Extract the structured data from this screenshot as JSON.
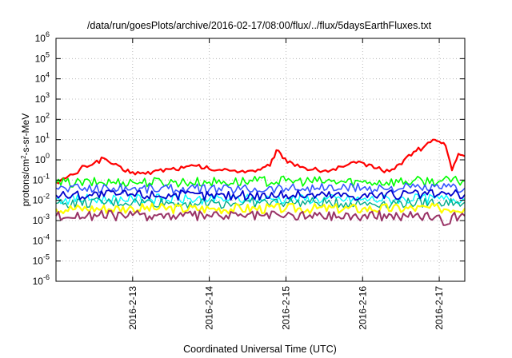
{
  "chart_data": {
    "type": "line",
    "title": "/data/run/goesPlots/archive/2016-02-17/08:00/flux/../flux/5daysEarthFluxes.txt",
    "xlabel": "Coordinated Universal Time (UTC)",
    "ylabel_parts": {
      "pre": "protons/cm",
      "sup": "2",
      "post": "-s-sr-MeV"
    },
    "x_range": [
      "2016-02-12 00:00",
      "2016-02-17 08:00"
    ],
    "x_ticks": [
      "2016-2-13",
      "2016-2-14",
      "2016-2-15",
      "2016-2-16",
      "2016-2-17"
    ],
    "y_scale": "log",
    "y_range": [
      1e-06,
      1000000.0
    ],
    "y_ticks": [
      {
        "base": "10",
        "exp": "-6"
      },
      {
        "base": "10",
        "exp": "-5"
      },
      {
        "base": "10",
        "exp": "-4"
      },
      {
        "base": "10",
        "exp": "-3"
      },
      {
        "base": "10",
        "exp": "-2"
      },
      {
        "base": "10",
        "exp": "-1"
      },
      {
        "base": "10",
        "exp": "0"
      },
      {
        "base": "10",
        "exp": "1"
      },
      {
        "base": "10",
        "exp": "2"
      },
      {
        "base": "10",
        "exp": "3"
      },
      {
        "base": "10",
        "exp": "4"
      },
      {
        "base": "10",
        "exp": "5"
      },
      {
        "base": "10",
        "exp": "6"
      }
    ],
    "grid": true,
    "legend": "none",
    "series": [
      {
        "color": "#ff0000",
        "width": 2.2,
        "values": [
          [
            "2016-02-12 00:00",
            0.08
          ],
          [
            "2016-02-12 03:00",
            0.12
          ],
          [
            "2016-02-12 06:00",
            0.2
          ],
          [
            "2016-02-12 09:00",
            0.5
          ],
          [
            "2016-02-12 12:00",
            0.7
          ],
          [
            "2016-02-12 15:00",
            1.2
          ],
          [
            "2016-02-12 18:00",
            0.6
          ],
          [
            "2016-02-12 21:00",
            0.3
          ],
          [
            "2016-02-13 00:00",
            0.25
          ],
          [
            "2016-02-13 04:00",
            0.2
          ],
          [
            "2016-02-13 08:00",
            0.3
          ],
          [
            "2016-02-13 12:00",
            0.35
          ],
          [
            "2016-02-13 16:00",
            0.4
          ],
          [
            "2016-02-13 20:00",
            0.5
          ],
          [
            "2016-02-14 00:00",
            0.35
          ],
          [
            "2016-02-14 04:00",
            0.3
          ],
          [
            "2016-02-14 08:00",
            0.3
          ],
          [
            "2016-02-14 12:00",
            0.28
          ],
          [
            "2016-02-14 16:00",
            0.32
          ],
          [
            "2016-02-14 19:00",
            0.5
          ],
          [
            "2016-02-14 21:00",
            3.0
          ],
          [
            "2016-02-14 23:00",
            1.2
          ],
          [
            "2016-02-15 02:00",
            0.7
          ],
          [
            "2016-02-15 06:00",
            0.4
          ],
          [
            "2016-02-15 10:00",
            0.3
          ],
          [
            "2016-02-15 14:00",
            0.3
          ],
          [
            "2016-02-15 18:00",
            0.45
          ],
          [
            "2016-02-15 22:00",
            0.7
          ],
          [
            "2016-02-16 02:00",
            0.6
          ],
          [
            "2016-02-16 06:00",
            0.3
          ],
          [
            "2016-02-16 10:00",
            0.35
          ],
          [
            "2016-02-16 13:00",
            1.0
          ],
          [
            "2016-02-16 16:00",
            2.5
          ],
          [
            "2016-02-16 19:00",
            4.0
          ],
          [
            "2016-02-16 22:00",
            10.0
          ],
          [
            "2016-02-17 00:00",
            8.0
          ],
          [
            "2016-02-17 02:00",
            5.0
          ],
          [
            "2016-02-17 04:00",
            0.3
          ],
          [
            "2016-02-17 06:00",
            2.0
          ],
          [
            "2016-02-17 08:00",
            1.5
          ]
        ]
      },
      {
        "color": "#00ff00",
        "width": 1.6,
        "values": [
          [
            "2016-02-12 00:00",
            0.07
          ],
          [
            "2016-02-13 00:00",
            0.08
          ],
          [
            "2016-02-14 00:00",
            0.08
          ],
          [
            "2016-02-15 00:00",
            0.09
          ],
          [
            "2016-02-16 00:00",
            0.08
          ],
          [
            "2016-02-17 00:00",
            0.09
          ],
          [
            "2016-02-17 08:00",
            0.09
          ]
        ]
      },
      {
        "color": "#00ffff",
        "width": 1.4,
        "values": [
          [
            "2016-02-12 00:00",
            0.011
          ],
          [
            "2016-02-13 00:00",
            0.012
          ],
          [
            "2016-02-14 00:00",
            0.011
          ],
          [
            "2016-02-15 00:00",
            0.012
          ],
          [
            "2016-02-16 00:00",
            0.011
          ],
          [
            "2016-02-17 00:00",
            0.012
          ],
          [
            "2016-02-17 08:00",
            0.012
          ]
        ]
      },
      {
        "color": "#00aa88",
        "width": 1.4,
        "values": [
          [
            "2016-02-12 00:00",
            0.007
          ],
          [
            "2016-02-13 00:00",
            0.008
          ],
          [
            "2016-02-14 00:00",
            0.007
          ],
          [
            "2016-02-15 00:00",
            0.008
          ],
          [
            "2016-02-16 00:00",
            0.007
          ],
          [
            "2016-02-17 00:00",
            0.008
          ],
          [
            "2016-02-17 08:00",
            0.008
          ]
        ]
      },
      {
        "color": "#3355ff",
        "width": 1.6,
        "values": [
          [
            "2016-02-12 00:00",
            0.04
          ],
          [
            "2016-02-13 00:00",
            0.04
          ],
          [
            "2016-02-14 00:00",
            0.035
          ],
          [
            "2016-02-15 00:00",
            0.04
          ],
          [
            "2016-02-16 00:00",
            0.04
          ],
          [
            "2016-02-17 00:00",
            0.04
          ],
          [
            "2016-02-17 08:00",
            0.04
          ]
        ]
      },
      {
        "color": "#0000cc",
        "width": 1.8,
        "values": [
          [
            "2016-02-12 00:00",
            0.018
          ],
          [
            "2016-02-13 00:00",
            0.02
          ],
          [
            "2016-02-14 00:00",
            0.017
          ],
          [
            "2016-02-15 00:00",
            0.019
          ],
          [
            "2016-02-16 00:00",
            0.018
          ],
          [
            "2016-02-17 00:00",
            0.02
          ],
          [
            "2016-02-17 08:00",
            0.019
          ]
        ]
      },
      {
        "color": "#ffff00",
        "width": 2.2,
        "values": [
          [
            "2016-02-12 00:00",
            0.0038
          ],
          [
            "2016-02-13 00:00",
            0.004
          ],
          [
            "2016-02-14 00:00",
            0.0038
          ],
          [
            "2016-02-15 00:00",
            0.0039
          ],
          [
            "2016-02-16 00:00",
            0.0038
          ],
          [
            "2016-02-17 00:00",
            0.004
          ],
          [
            "2016-02-17 08:00",
            0.004
          ]
        ]
      },
      {
        "color": "#993366",
        "width": 2,
        "values": [
          [
            "2016-02-12 00:00",
            0.0017
          ],
          [
            "2016-02-13 00:00",
            0.0018
          ],
          [
            "2016-02-14 00:00",
            0.0017
          ],
          [
            "2016-02-15 00:00",
            0.0018
          ],
          [
            "2016-02-16 00:00",
            0.0017
          ],
          [
            "2016-02-17 00:00",
            0.0018
          ],
          [
            "2016-02-17 02:00",
            0.0006
          ],
          [
            "2016-02-17 04:00",
            0.0017
          ],
          [
            "2016-02-17 08:00",
            0.0017
          ]
        ]
      }
    ]
  }
}
